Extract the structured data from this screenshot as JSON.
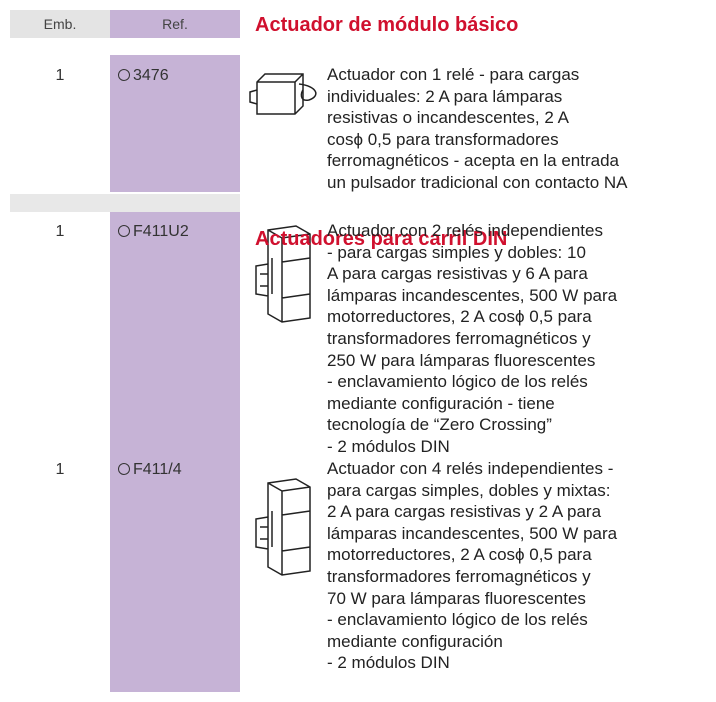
{
  "header": {
    "emb": "Emb.",
    "ref": "Ref."
  },
  "sections": [
    {
      "title": "Actuador de módulo básico",
      "items": [
        {
          "emb": "1",
          "ref": "3476",
          "description": [
            "Actuador con 1 relé - para cargas",
            "individuales: 2 A para lámparas",
            "resistivas o incandescentes, 2 A",
            "cosϕ 0,5 para transformadores",
            "ferromagnéticos - acepta en la entrada",
            "un pulsador tradicional con contacto NA"
          ]
        }
      ]
    },
    {
      "title": "Actuadores para carril DIN",
      "items": [
        {
          "emb": "1",
          "ref": "F411U2",
          "description": [
            "Actuador con 2 relés independientes",
            "- para cargas simples y dobles: 10",
            "A para cargas resistivas y 6 A para",
            "lámparas incandescentes, 500 W para",
            "motorreductores, 2 A cosϕ 0,5 para",
            "transformadores ferromagnéticos y",
            "250 W para lámparas fluorescentes",
            "- enclavamiento lógico de los relés",
            "mediante configuración - tiene",
            "tecnología de “Zero Crossing”",
            "- 2 módulos DIN"
          ]
        },
        {
          "emb": "1",
          "ref": "F411/4",
          "description": [
            "Actuador con 4 relés independientes -",
            "para cargas simples, dobles y mixtas:",
            "2 A para cargas resistivas y 2 A para",
            "lámparas incandescentes, 500 W para",
            "motorreductores, 2 A cosϕ 0,5 para",
            "transformadores ferromagnéticos y",
            "70 W para lámparas fluorescentes",
            "- enclavamiento lógico de los relés",
            "mediante configuración",
            "- 2 módulos DIN"
          ]
        }
      ]
    }
  ]
}
